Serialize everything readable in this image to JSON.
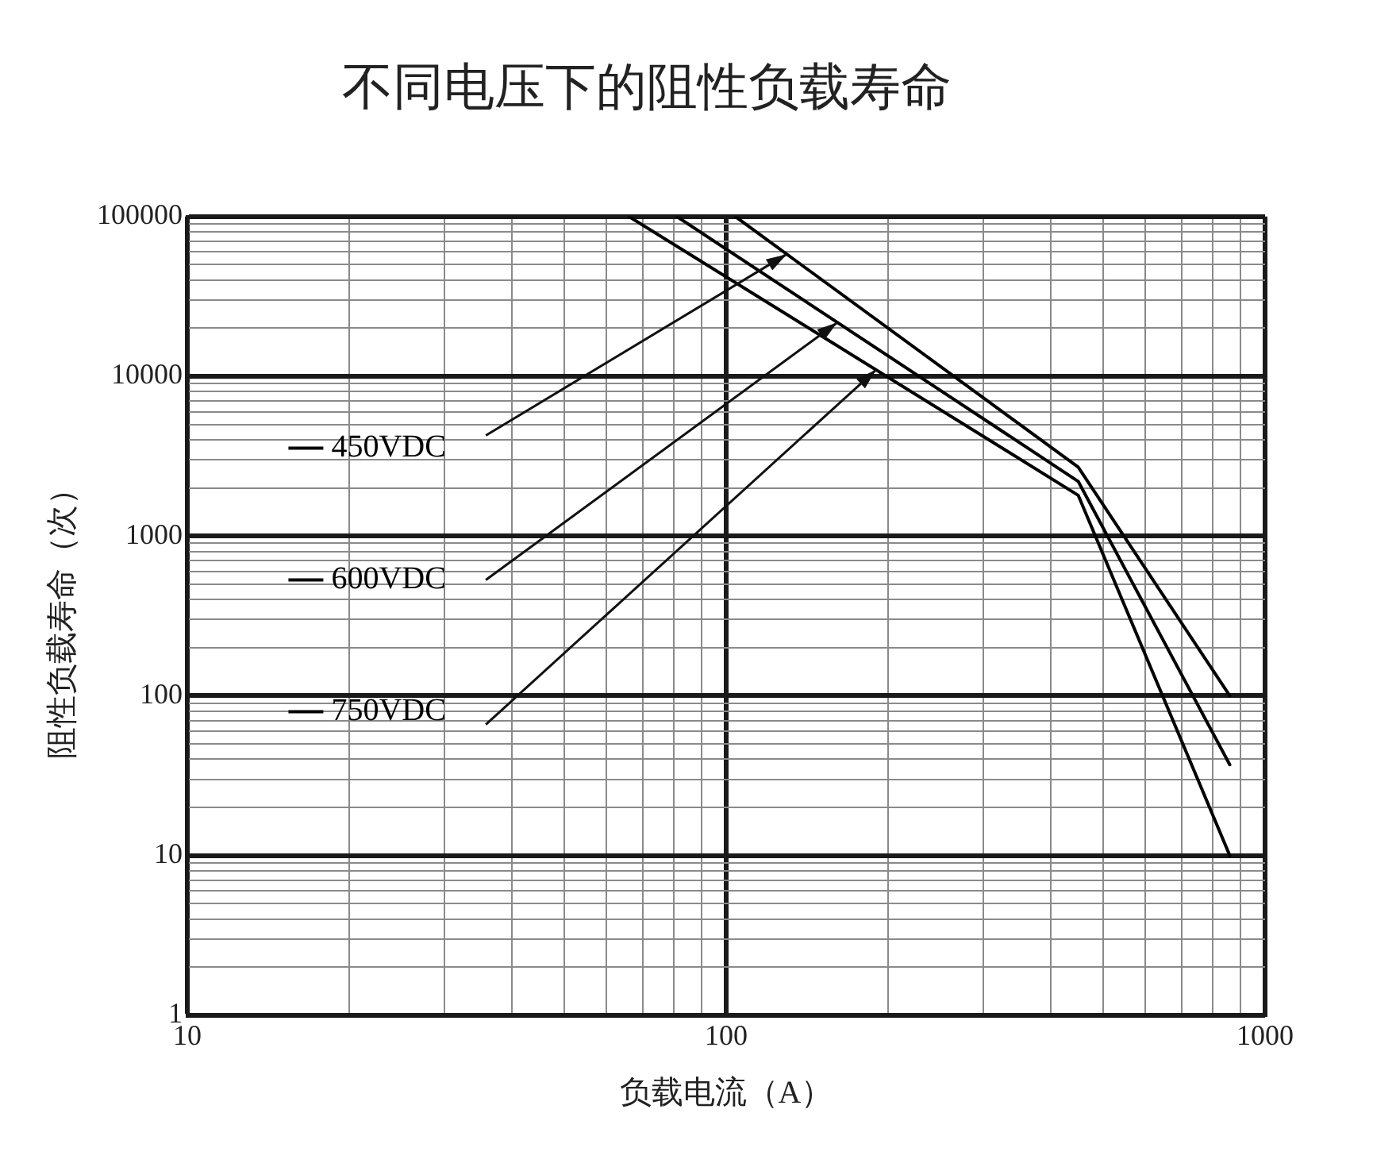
{
  "chart_data": {
    "type": "line",
    "title": "不同电压下的阻性负载寿命",
    "xlabel": "负载电流（A）",
    "ylabel": "阻性负载寿命（次）",
    "log": "xy",
    "grid": true,
    "legend": "left",
    "marker": "none",
    "line_style": "solid",
    "xlim": [
      10,
      1000
    ],
    "ylim": [
      1,
      100000
    ],
    "xticks": [
      10,
      {
        "value": 20,
        "label": null
      },
      {
        "value": 30,
        "label": null
      },
      {
        "value": 40,
        "label": null
      },
      {
        "value": 50,
        "label": null
      },
      {
        "value": 60,
        "label": null
      },
      {
        "value": 70,
        "label": null
      },
      {
        "value": 80,
        "label": null
      },
      {
        "value": 90,
        "label": null
      },
      100,
      {
        "value": 200,
        "label": null
      },
      {
        "value": 300,
        "label": null
      },
      {
        "value": 400,
        "label": null
      },
      {
        "value": 500,
        "label": null
      },
      {
        "value": 600,
        "label": null
      },
      {
        "value": 700,
        "label": null
      },
      {
        "value": 800,
        "label": null
      },
      {
        "value": 900,
        "label": null
      },
      1000
    ],
    "yticks": [
      1,
      {
        "value": 2,
        "label": null
      },
      {
        "value": 3,
        "label": null
      },
      {
        "value": 4,
        "label": null
      },
      {
        "value": 5,
        "label": null
      },
      {
        "value": 6,
        "label": null
      },
      {
        "value": 7,
        "label": null
      },
      {
        "value": 8,
        "label": null
      },
      {
        "value": 9,
        "label": null
      },
      10,
      {
        "value": 20,
        "label": null
      },
      {
        "value": 30,
        "label": null
      },
      {
        "value": 40,
        "label": null
      },
      {
        "value": 50,
        "label": null
      },
      {
        "value": 60,
        "label": null
      },
      {
        "value": 70,
        "label": null
      },
      {
        "value": 80,
        "label": null
      },
      {
        "value": 90,
        "label": null
      },
      100,
      {
        "value": 200,
        "label": null
      },
      {
        "value": 300,
        "label": null
      },
      {
        "value": 400,
        "label": null
      },
      {
        "value": 500,
        "label": null
      },
      {
        "value": 600,
        "label": null
      },
      {
        "value": 700,
        "label": null
      },
      {
        "value": 800,
        "label": null
      },
      {
        "value": 900,
        "label": null
      },
      1000,
      {
        "value": 2000,
        "label": null
      },
      {
        "value": 3000,
        "label": null
      },
      {
        "value": 4000,
        "label": null
      },
      {
        "value": 5000,
        "label": null
      },
      {
        "value": 6000,
        "label": null
      },
      {
        "value": 7000,
        "label": null
      },
      {
        "value": 8000,
        "label": null
      },
      {
        "value": 9000,
        "label": null
      },
      10000,
      {
        "value": 20000,
        "label": null
      },
      {
        "value": 30000,
        "label": null
      },
      {
        "value": 40000,
        "label": null
      },
      {
        "value": 50000,
        "label": null
      },
      {
        "value": 60000,
        "label": null
      },
      {
        "value": 70000,
        "label": null
      },
      {
        "value": 80000,
        "label": null
      },
      {
        "value": 90000,
        "label": null
      },
      100000
    ],
    "series": [
      {
        "name": "450VDC",
        "color": "#000000",
        "x": [
          104,
          450,
          860
        ],
        "values": [
          100000,
          2700,
          100
        ]
      },
      {
        "name": "600VDC",
        "color": "#000000",
        "x": [
          81,
          450,
          860
        ],
        "values": [
          100000,
          2200,
          37
        ]
      },
      {
        "name": "750VDC",
        "color": "#000000",
        "x": [
          66,
          450,
          860
        ],
        "values": [
          100000,
          1800,
          10
        ]
      }
    ]
  }
}
